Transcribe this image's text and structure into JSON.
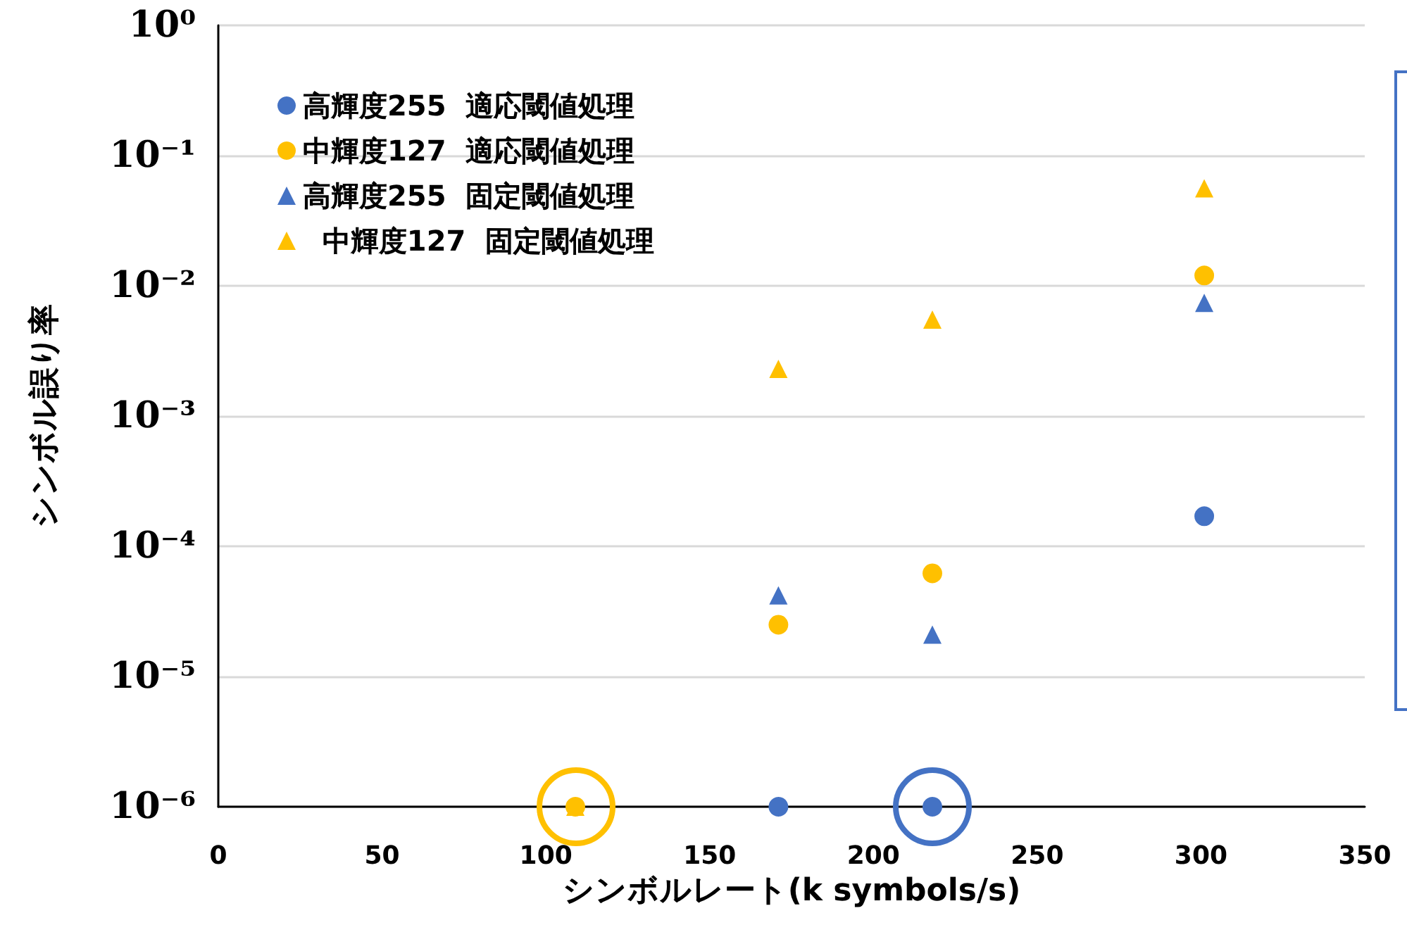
{
  "chart_data": {
    "type": "scatter",
    "xlabel": "シンボルレート(k symbols/s)",
    "ylabel": "シンボル誤り率",
    "xlim": [
      0,
      350
    ],
    "xticks": [
      0,
      50,
      100,
      150,
      200,
      250,
      300,
      350
    ],
    "ylim": [
      1e-06,
      1
    ],
    "yticks": [
      {
        "value": 1e-06,
        "label": "10⁻⁶"
      },
      {
        "value": 1e-05,
        "label": "10⁻⁵"
      },
      {
        "value": 0.0001,
        "label": "10⁻⁴"
      },
      {
        "value": 0.001,
        "label": "10⁻³"
      },
      {
        "value": 0.01,
        "label": "10⁻²"
      },
      {
        "value": 0.1,
        "label": "10⁻¹"
      },
      {
        "value": 1,
        "label": "10⁰"
      }
    ],
    "log": "y",
    "grid": "y",
    "legend": "top left",
    "series": [
      {
        "name": "高輝度255  適応閾値処理",
        "color": "#4472c4",
        "marker": "circle",
        "x": [
          171,
          218,
          301
        ],
        "values": [
          1e-06,
          1e-06,
          0.00017
        ]
      },
      {
        "name": "中輝度127  適応閾値処理",
        "color": "#ffc000",
        "marker": "circle",
        "x": [
          109,
          171,
          218,
          301
        ],
        "values": [
          1e-06,
          2.5e-05,
          6.2e-05,
          0.012
        ]
      },
      {
        "name": "高輝度255  固定閾値処理",
        "color": "#4472c4",
        "marker": "triangle",
        "x": [
          171,
          218,
          301
        ],
        "values": [
          4.2e-05,
          2.1e-05,
          0.0074
        ]
      },
      {
        "name": "  中輝度127  固定閾値処理",
        "color": "#ffc000",
        "marker": "triangle",
        "x": [
          109,
          171,
          218,
          301
        ],
        "values": [
          1e-06,
          0.0023,
          0.0055,
          0.056
        ]
      }
    ]
  }
}
